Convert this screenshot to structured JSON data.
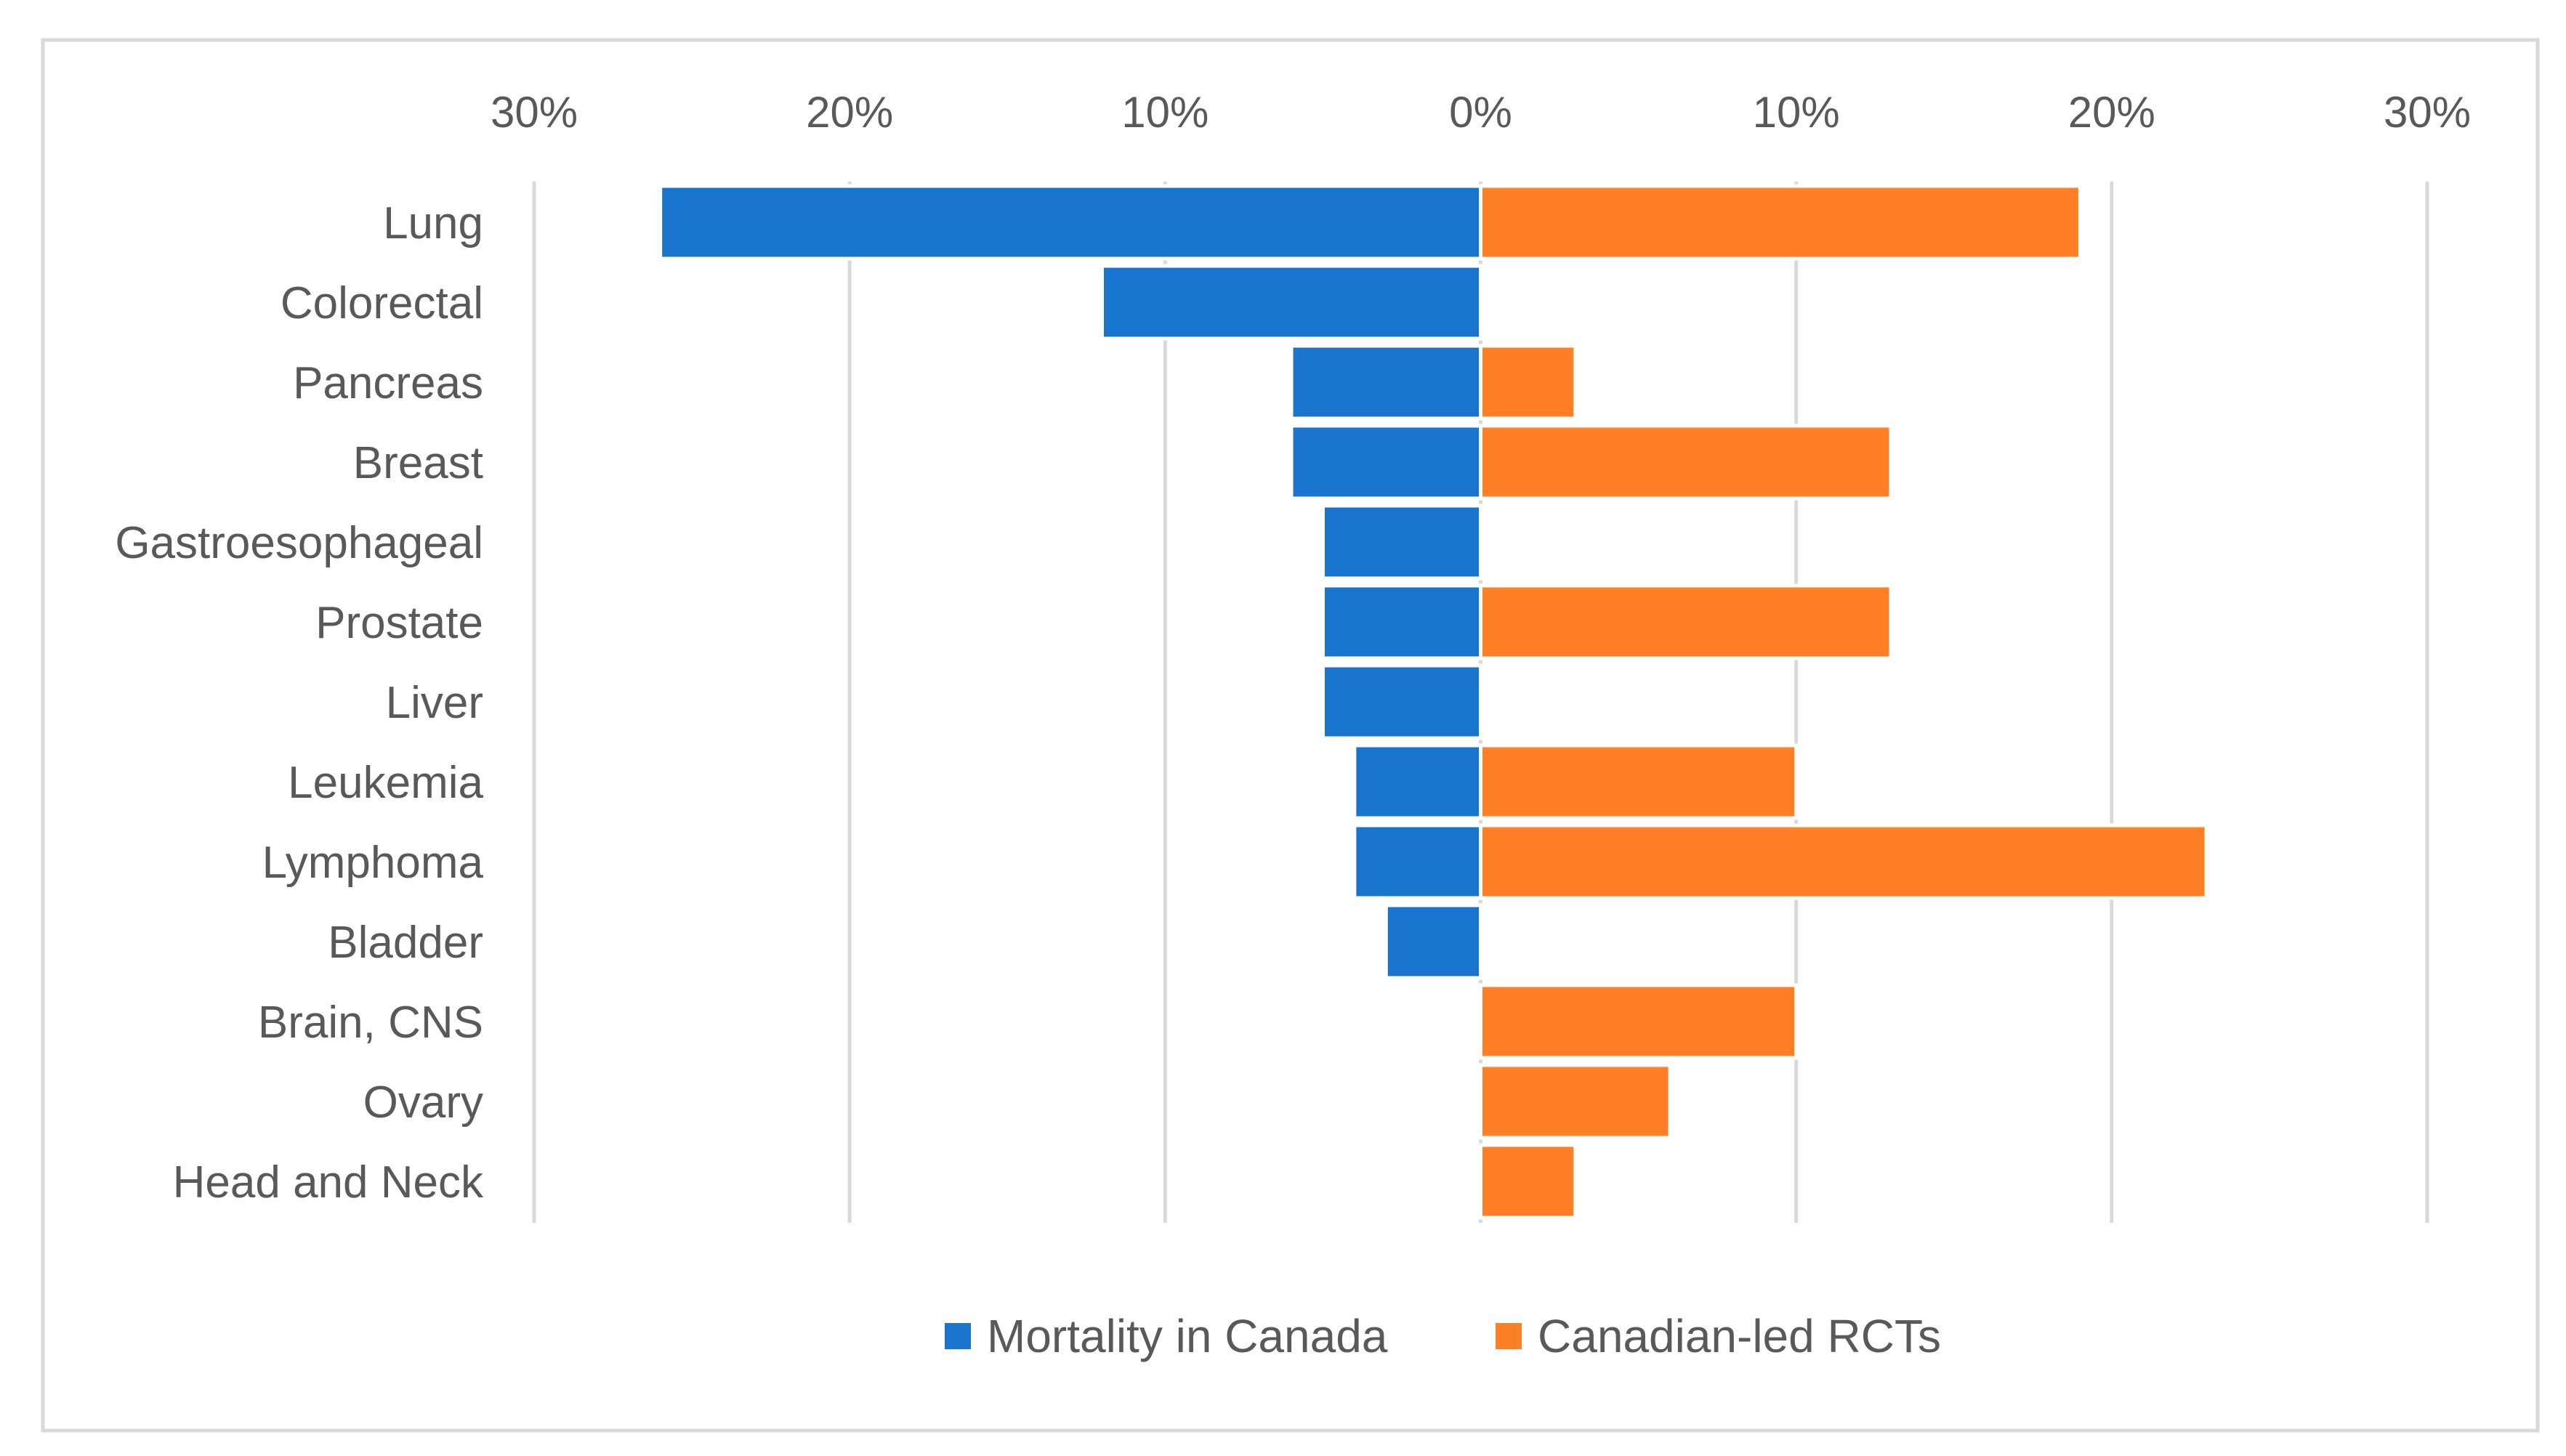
{
  "chart_data": {
    "type": "bar",
    "orientation": "horizontal",
    "layout": "butterfly",
    "title": "",
    "xlabel": "",
    "ylabel": "",
    "xlim": [
      -30,
      30
    ],
    "x_ticks": [
      -30,
      -20,
      -10,
      0,
      10,
      20,
      30
    ],
    "tick_labels": [
      "30%",
      "20%",
      "10%",
      "0%",
      "10%",
      "20%",
      "30%"
    ],
    "tick_position": "top",
    "grid": true,
    "legend_position": "bottom-center",
    "categories": [
      "Lung",
      "Colorectal",
      "Pancreas",
      "Breast",
      "Gastroesophageal",
      "Prostate",
      "Liver",
      "Leukemia",
      "Lymphoma",
      "Bladder",
      "Brain, CNS",
      "Ovary",
      "Head and Neck"
    ],
    "series": [
      {
        "name": "Mortality in Canada",
        "side": "left",
        "color": "#1874CD",
        "values": [
          26,
          12,
          6,
          6,
          5,
          5,
          5,
          4,
          4,
          3,
          0,
          0,
          0
        ]
      },
      {
        "name": "Canadian-led RCTs",
        "side": "right",
        "color": "#FF7F27",
        "values": [
          19,
          0,
          3,
          13,
          0,
          13,
          0,
          10,
          23,
          0,
          10,
          6,
          3
        ]
      }
    ]
  }
}
